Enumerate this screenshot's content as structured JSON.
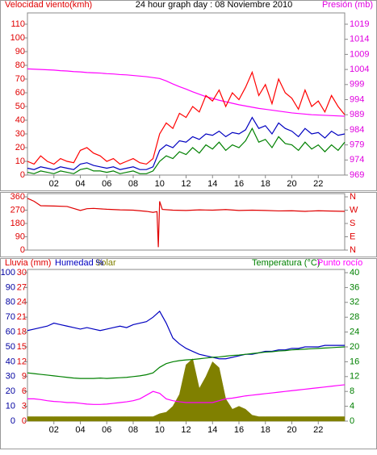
{
  "chart_data": [
    {
      "type": "line",
      "title": "24 hour graph day : 08 Noviembre 2010",
      "ylabel": "Velocidad viento(kmh)",
      "y2label": "Presión (mb)",
      "x": [
        0,
        0.5,
        1,
        1.5,
        2,
        2.5,
        3,
        3.5,
        4,
        4.5,
        5,
        5.5,
        6,
        6.5,
        7,
        7.5,
        8,
        8.5,
        9,
        9.5,
        10,
        10.5,
        11,
        11.5,
        12,
        12.5,
        13,
        13.5,
        14,
        14.5,
        15,
        15.5,
        16,
        16.5,
        17,
        17.5,
        18,
        18.5,
        19,
        19.5,
        20,
        20.5,
        21,
        21.5,
        22,
        22.5,
        23,
        23.5,
        24
      ],
      "xlim": [
        0,
        24
      ],
      "xticks": [
        {
          "value": 2,
          "label": "02"
        },
        {
          "value": 4,
          "label": "04"
        },
        {
          "value": 6,
          "label": "06"
        },
        {
          "value": 8,
          "label": "08"
        },
        {
          "value": 10,
          "label": "10"
        },
        {
          "value": 12,
          "label": "12"
        },
        {
          "value": 14,
          "label": "14"
        },
        {
          "value": 16,
          "label": "16"
        },
        {
          "value": 18,
          "label": "18"
        },
        {
          "value": 20,
          "label": "20"
        },
        {
          "value": 22,
          "label": "22"
        }
      ],
      "ylim": [
        0,
        110
      ],
      "yticks": [
        0,
        10,
        20,
        30,
        40,
        50,
        60,
        70,
        80,
        90,
        100,
        110
      ],
      "y2lim": [
        969,
        1019
      ],
      "y2ticks": [
        969,
        974,
        979,
        984,
        989,
        994,
        999,
        1004,
        1009,
        1014,
        1019
      ],
      "series": [
        {
          "color": "#ff00ff",
          "axis": "y2",
          "values": [
            1004.2,
            1004.1,
            1004,
            1003.9,
            1003.8,
            1003.6,
            1003.5,
            1003.3,
            1003.2,
            1003,
            1002.9,
            1002.8,
            1002.6,
            1002.5,
            1002.3,
            1002.2,
            1002,
            1001.8,
            1001.6,
            1001.3,
            1001,
            1000.2,
            999.2,
            998.3,
            997.5,
            996.6,
            995.8,
            995,
            994.4,
            993.8,
            993.3,
            992.8,
            992.3,
            991.9,
            991.5,
            991.1,
            990.8,
            990.5,
            990.2,
            989.9,
            989.6,
            989.4,
            989.2,
            989,
            988.9,
            988.8,
            988.7,
            988.6,
            988.5
          ]
        },
        {
          "color": "#ff0000",
          "values": [
            10,
            8,
            14,
            10,
            8,
            12,
            10,
            9,
            18,
            20,
            16,
            14,
            10,
            12,
            8,
            10,
            12,
            9,
            8,
            12,
            30,
            38,
            34,
            45,
            42,
            50,
            46,
            58,
            54,
            62,
            50,
            60,
            55,
            64,
            75,
            58,
            66,
            52,
            70,
            60,
            56,
            48,
            62,
            50,
            54,
            46,
            58,
            50,
            44
          ]
        },
        {
          "color": "#0000c0",
          "values": [
            5,
            4,
            6,
            5,
            4,
            6,
            5,
            4,
            8,
            9,
            7,
            6,
            5,
            6,
            4,
            5,
            6,
            4,
            4,
            6,
            18,
            22,
            20,
            25,
            24,
            28,
            26,
            30,
            29,
            32,
            28,
            31,
            30,
            33,
            42,
            34,
            36,
            30,
            38,
            34,
            32,
            28,
            34,
            30,
            31,
            27,
            32,
            29,
            30
          ]
        },
        {
          "color": "#008000",
          "values": [
            2,
            1,
            3,
            2,
            1,
            3,
            2,
            1,
            4,
            5,
            3,
            3,
            2,
            3,
            1,
            2,
            3,
            1,
            1,
            3,
            10,
            14,
            12,
            17,
            15,
            20,
            16,
            22,
            19,
            24,
            18,
            22,
            20,
            25,
            34,
            24,
            26,
            20,
            28,
            23,
            22,
            18,
            24,
            19,
            22,
            17,
            22,
            18,
            24
          ]
        }
      ]
    },
    {
      "type": "line",
      "x": [
        0,
        0.5,
        1,
        2,
        3,
        4,
        4.5,
        5,
        6,
        7,
        8,
        9,
        9.5,
        9.8,
        9.9,
        10,
        10.2,
        11,
        12,
        13,
        14,
        15,
        16,
        17,
        18,
        19,
        20,
        21,
        22,
        23,
        24
      ],
      "xlim": [
        0,
        24
      ],
      "ylim": [
        0,
        360
      ],
      "yticks": [
        0,
        90,
        180,
        270,
        360
      ],
      "y2lim": [
        0,
        360
      ],
      "y2ticks": [
        {
          "value": 0,
          "label": "N"
        },
        {
          "value": 90,
          "label": "E"
        },
        {
          "value": 180,
          "label": "S"
        },
        {
          "value": 270,
          "label": "W"
        },
        {
          "value": 360,
          "label": "N"
        }
      ],
      "series": [
        {
          "color": "#e00000",
          "values": [
            350,
            330,
            300,
            298,
            295,
            268,
            280,
            282,
            276,
            272,
            270,
            262,
            255,
            260,
            20,
            330,
            275,
            270,
            268,
            272,
            270,
            274,
            268,
            270,
            268,
            265,
            266,
            262,
            266,
            264,
            262
          ]
        }
      ]
    },
    {
      "type": "line",
      "y3label": "Lluvia (mm)",
      "x": [
        0,
        0.5,
        1,
        1.5,
        2,
        2.5,
        3,
        3.5,
        4,
        4.5,
        5,
        5.5,
        6,
        6.5,
        7,
        7.5,
        8,
        8.5,
        9,
        9.5,
        10,
        10.5,
        11,
        11.5,
        12,
        12.5,
        13,
        13.5,
        14,
        14.5,
        15,
        15.5,
        16,
        16.5,
        17,
        17.5,
        18,
        18.5,
        19,
        19.5,
        20,
        20.5,
        21,
        21.5,
        22,
        22.5,
        23,
        23.5,
        24
      ],
      "xlim": [
        0,
        24
      ],
      "xticks": [
        {
          "value": 2,
          "label": "02"
        },
        {
          "value": 4,
          "label": "04"
        },
        {
          "value": 6,
          "label": "06"
        },
        {
          "value": 8,
          "label": "08"
        },
        {
          "value": 10,
          "label": "10"
        },
        {
          "value": 12,
          "label": "12"
        },
        {
          "value": 14,
          "label": "14"
        },
        {
          "value": 16,
          "label": "16"
        },
        {
          "value": 18,
          "label": "18"
        },
        {
          "value": 20,
          "label": "20"
        },
        {
          "value": 22,
          "label": "22"
        }
      ],
      "ylim": [
        0,
        100
      ],
      "yticks": [
        0,
        10,
        20,
        30,
        40,
        50,
        60,
        70,
        80,
        90,
        100
      ],
      "y3lim": [
        0,
        30
      ],
      "y3ticks": [
        0,
        3,
        6,
        9,
        12,
        15,
        18,
        21,
        24,
        27,
        30
      ],
      "y2lim": [
        0,
        40
      ],
      "y2ticks": [
        0,
        4,
        8,
        12,
        16,
        20,
        24,
        28,
        32,
        36,
        40
      ],
      "series": [
        {
          "name": "Solar",
          "color": "#808000",
          "kind": "area",
          "values": [
            3,
            3,
            3,
            3,
            3,
            3,
            3,
            3,
            3,
            3,
            3,
            3,
            3,
            3,
            3,
            3,
            3,
            3,
            3,
            3,
            5,
            6,
            10,
            18,
            38,
            42,
            22,
            30,
            40,
            36,
            15,
            8,
            10,
            8,
            4,
            3,
            3,
            3,
            3,
            3,
            3,
            3,
            3,
            3,
            3,
            3,
            3,
            3,
            3
          ]
        },
        {
          "name": "Humedad %",
          "color": "#0000c0",
          "values": [
            61,
            62,
            63,
            64,
            66,
            65,
            64,
            63,
            62,
            63,
            62,
            61,
            62,
            63,
            64,
            63,
            65,
            66,
            67,
            70,
            74,
            66,
            56,
            52,
            49,
            47,
            45,
            44,
            43,
            42,
            42,
            43,
            44,
            45,
            45,
            46,
            47,
            47,
            48,
            48,
            49,
            49,
            50,
            50,
            50,
            51,
            51,
            51,
            51
          ]
        },
        {
          "name": "Temperatura (°C)",
          "color": "#008000",
          "axis": "y2",
          "values": [
            13,
            12.8,
            12.6,
            12.4,
            12.2,
            12,
            11.8,
            11.6,
            11.5,
            11.5,
            11.5,
            11.6,
            11.5,
            11.6,
            11.7,
            11.8,
            12,
            12.2,
            12.5,
            13,
            14.5,
            15.5,
            16,
            16.3,
            16.5,
            16.6,
            16.8,
            17,
            17.2,
            17.3,
            17.5,
            17.7,
            17.8,
            18,
            18.2,
            18.4,
            18.6,
            18.7,
            18.9,
            19,
            19.2,
            19.3,
            19.4,
            19.5,
            19.6,
            19.7,
            19.8,
            19.9,
            20
          ]
        },
        {
          "name": "Punto rocío",
          "color": "#ff00ff",
          "axis": "y2",
          "values": [
            6,
            6,
            5.8,
            5.5,
            5.3,
            5.2,
            5,
            5,
            4.8,
            4.6,
            4.5,
            4.5,
            4.6,
            4.8,
            5,
            5.2,
            5.5,
            6,
            7,
            8,
            7.5,
            6,
            5.5,
            5.2,
            5,
            5,
            5,
            5,
            5,
            5.5,
            6,
            6.2,
            6.5,
            6.8,
            7,
            7.2,
            7.4,
            7.6,
            7.8,
            8,
            8.2,
            8.4,
            8.6,
            8.8,
            9,
            9.2,
            9.4,
            9.6,
            9.8
          ]
        }
      ]
    }
  ]
}
